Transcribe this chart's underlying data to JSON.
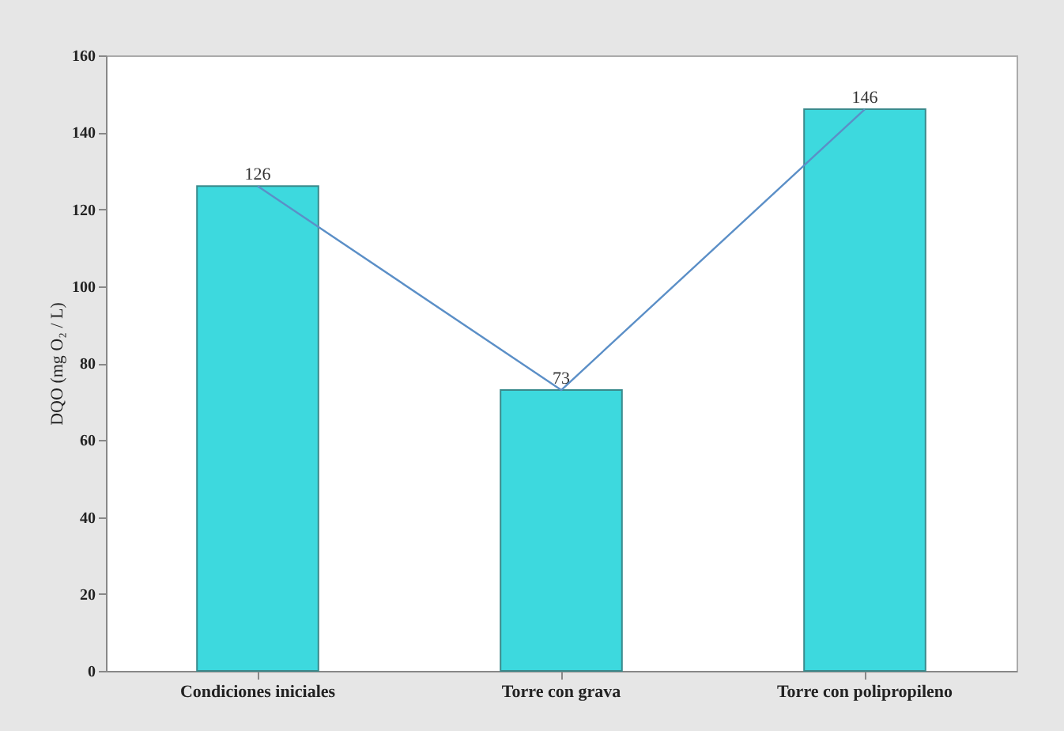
{
  "chart_data": {
    "type": "bar",
    "ylabel": "DQO (mg O₂ / L)",
    "categories": [
      "Condiciones iniciales",
      "Torre con grava",
      "Torre con polipropileno"
    ],
    "series": [
      {
        "color": "#3dd9de",
        "values": [
          126,
          73,
          146
        ],
        "value_labels": [
          "126",
          "73",
          "146"
        ]
      },
      {
        "type": "line",
        "color": "#5b8fc7",
        "values": [
          126,
          73,
          146
        ]
      }
    ],
    "ylim": [
      0,
      160
    ],
    "yticks": [
      0,
      20,
      40,
      60,
      80,
      100,
      120,
      140,
      160
    ],
    "grid": false
  }
}
